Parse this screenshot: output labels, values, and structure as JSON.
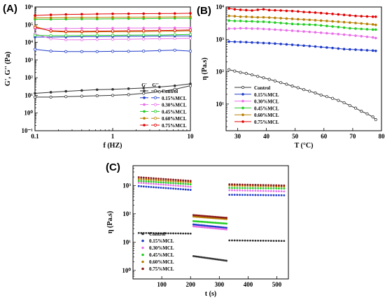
{
  "chart_data": [
    {
      "panel": "(A)",
      "type": "line",
      "xlabel": "f (HZ)",
      "ylabel": "G', G'' (Pa)",
      "xscale": "log",
      "yscale": "log",
      "xlim": [
        0.1,
        10
      ],
      "ylim": [
        0.1,
        1000000
      ],
      "x_ticks": [
        0.1,
        1,
        10
      ],
      "x_tick_labels": [
        "0.1",
        "1",
        "10"
      ],
      "y_ticks": [
        0.1,
        1,
        10,
        100,
        1000,
        10000,
        100000,
        1000000
      ],
      "y_tick_labels": [
        "10⁻¹",
        "10⁰",
        "10¹",
        "10²",
        "10³",
        "10⁴",
        "10⁵",
        "10⁶"
      ],
      "legend_header": [
        "G'",
        "G''"
      ],
      "legend_position": "bottom-right",
      "x": [
        0.1,
        0.16,
        0.25,
        0.4,
        0.63,
        1.0,
        1.6,
        2.5,
        4.0,
        6.3,
        10.0
      ],
      "series": [
        {
          "name": "Control",
          "color": "#333333",
          "G1": [
            13,
            15,
            17,
            19,
            21,
            22,
            24,
            26,
            30,
            35,
            45
          ],
          "G2": [
            8,
            8,
            8.5,
            9,
            9.5,
            10,
            11,
            13,
            16,
            22,
            35
          ]
        },
        {
          "name": "0.15%MCL",
          "color": "#1f3cc8",
          "G1": [
            20000,
            20000,
            20500,
            21000,
            21000,
            21500,
            22000,
            22000,
            22500,
            23000,
            23000
          ],
          "G2": [
            4000,
            3200,
            3000,
            3000,
            3000,
            3100,
            3100,
            3200,
            3400,
            3600,
            3200
          ]
        },
        {
          "name": "0.30%MCL",
          "color": "#e870e8",
          "G1": [
            60000,
            60000,
            61000,
            62000,
            62000,
            63000,
            64000,
            64000,
            65000,
            66000,
            66000
          ],
          "G2": [
            30000,
            16000,
            14000,
            14000,
            14500,
            15000,
            15000,
            15500,
            16000,
            16500,
            17000
          ]
        },
        {
          "name": "0.45%MCL",
          "color": "#22cc22",
          "G1": [
            200000,
            200000,
            205000,
            210000,
            210000,
            215000,
            220000,
            220000,
            225000,
            230000,
            230000
          ],
          "G2": [
            25000,
            24000,
            24000,
            24500,
            25000,
            25000,
            25500,
            26000,
            26000,
            27000,
            28000
          ]
        },
        {
          "name": "0.60%MCL",
          "color": "#b87f00",
          "G1": [
            240000,
            245000,
            250000,
            255000,
            255000,
            260000,
            265000,
            268000,
            270000,
            275000,
            280000
          ],
          "G2": [
            80000,
            42000,
            38000,
            38000,
            39000,
            40000,
            40000,
            41000,
            42000,
            43000,
            45000
          ]
        },
        {
          "name": "0.75%MCL",
          "color": "#e00000",
          "G1": [
            330000,
            360000,
            380000,
            390000,
            400000,
            410000,
            415000,
            420000,
            425000,
            430000,
            440000
          ],
          "G2": [
            70000,
            45000,
            42000,
            42000,
            43000,
            44000,
            45000,
            46000,
            47000,
            48000,
            50000
          ]
        }
      ]
    },
    {
      "panel": "(B)",
      "type": "line",
      "xlabel": "T (°C)",
      "ylabel": "η (Pa.s)",
      "yscale": "log",
      "xlim": [
        26,
        80
      ],
      "ylim": [
        1.5,
        10000
      ],
      "x_ticks": [
        30,
        40,
        50,
        60,
        70,
        80
      ],
      "y_ticks": [
        10,
        100,
        1000,
        10000
      ],
      "y_tick_labels": [
        "10¹",
        "10²",
        "10³",
        "10⁴"
      ],
      "legend_position": "bottom-left",
      "x": [
        27,
        29,
        31,
        33,
        35,
        37,
        39,
        41,
        43,
        45,
        47,
        49,
        51,
        53,
        55,
        57,
        59,
        61,
        63,
        65,
        67,
        69,
        71,
        73,
        75,
        77,
        78
      ],
      "series": [
        {
          "name": "Control",
          "color": "#333333",
          "values": [
            115,
            105,
            95,
            88,
            80,
            72,
            65,
            58,
            52,
            46,
            41,
            36,
            32,
            28,
            25,
            22,
            19,
            17,
            15,
            13,
            11,
            9,
            7.5,
            6,
            5,
            4,
            3.3
          ]
        },
        {
          "name": "0.15%MCL",
          "color": "#1f3cc8",
          "values": [
            850,
            840,
            830,
            820,
            800,
            790,
            770,
            760,
            740,
            720,
            700,
            680,
            660,
            640,
            620,
            600,
            580,
            560,
            540,
            520,
            500,
            490,
            480,
            470,
            460,
            450,
            440
          ]
        },
        {
          "name": "0.30%MCL",
          "color": "#e870e8",
          "values": [
            2150,
            2150,
            2200,
            2200,
            2150,
            2150,
            2100,
            2050,
            2000,
            1950,
            1900,
            1850,
            1800,
            1750,
            1700,
            1650,
            1600,
            1550,
            1500,
            1450,
            1400,
            1350,
            1300,
            1250,
            1200,
            1150,
            1100
          ]
        },
        {
          "name": "0.45%MCL",
          "color": "#22cc22",
          "values": [
            3800,
            3700,
            3700,
            3600,
            3600,
            3500,
            3500,
            3400,
            3300,
            3200,
            3100,
            3000,
            2950,
            2900,
            2850,
            2800,
            2700,
            2600,
            2500,
            2400,
            2300,
            2200,
            2150,
            2100,
            2050,
            2000,
            2000
          ]
        },
        {
          "name": "0.60%MCL",
          "color": "#b87f00",
          "values": [
            5300,
            5200,
            5000,
            5000,
            4900,
            4800,
            4800,
            4700,
            4600,
            4500,
            4400,
            4300,
            4200,
            4100,
            4000,
            3900,
            3800,
            3700,
            3600,
            3500,
            3400,
            3300,
            3200,
            3100,
            3000,
            2900,
            2800
          ]
        },
        {
          "name": "0.75%MCL",
          "color": "#e00000",
          "values": [
            9000,
            8500,
            8200,
            8000,
            7800,
            8200,
            8500,
            8000,
            7900,
            7800,
            7600,
            7500,
            7300,
            7000,
            6900,
            6700,
            6500,
            6300,
            6100,
            5900,
            5700,
            5500,
            5300,
            5200,
            5100,
            5000,
            5000
          ]
        }
      ]
    },
    {
      "panel": "(C)",
      "type": "scatter",
      "xlabel": "t (s)",
      "ylabel": "η (Pa.s)",
      "yscale": "log",
      "xlim": [
        0,
        540
      ],
      "ylim": [
        0.5,
        5000
      ],
      "x_ticks": [
        100,
        200,
        300,
        400,
        500
      ],
      "y_ticks": [
        1,
        10,
        100,
        1000
      ],
      "y_tick_labels": [
        "10⁰",
        "10¹",
        "10²",
        "10³"
      ],
      "legend_position": "bottom-left",
      "segments": [
        [
          20,
          200
        ],
        [
          210,
          325
        ],
        [
          335,
          525
        ]
      ],
      "series": [
        {
          "name": "Control",
          "color": "#333333",
          "segment_values": [
            [
              21,
              20
            ],
            [
              3.2,
              2.2
            ],
            [
              11.5,
              11
            ]
          ]
        },
        {
          "name": "0.15%MCL",
          "color": "#1f3cc8",
          "segment_values": [
            [
              950,
              700
            ],
            [
              42,
              32
            ],
            [
              470,
              450
            ]
          ]
        },
        {
          "name": "0.30%MCL",
          "color": "#e870e8",
          "segment_values": [
            [
              1250,
              900
            ],
            [
              36,
              28
            ],
            [
              680,
              620
            ]
          ]
        },
        {
          "name": "0.45%MCL",
          "color": "#22cc22",
          "segment_values": [
            [
              1450,
              1100
            ],
            [
              55,
              45
            ],
            [
              820,
              780
            ]
          ]
        },
        {
          "name": "0.60%MCL",
          "color": "#b87f00",
          "segment_values": [
            [
              1700,
              1300
            ],
            [
              80,
              65
            ],
            [
              1000,
              920
            ]
          ]
        },
        {
          "name": "0.75%MCL",
          "color": "#8b1a1a",
          "segment_values": [
            [
              1950,
              1450
            ],
            [
              90,
              72
            ],
            [
              1100,
              1000
            ]
          ]
        }
      ]
    }
  ]
}
